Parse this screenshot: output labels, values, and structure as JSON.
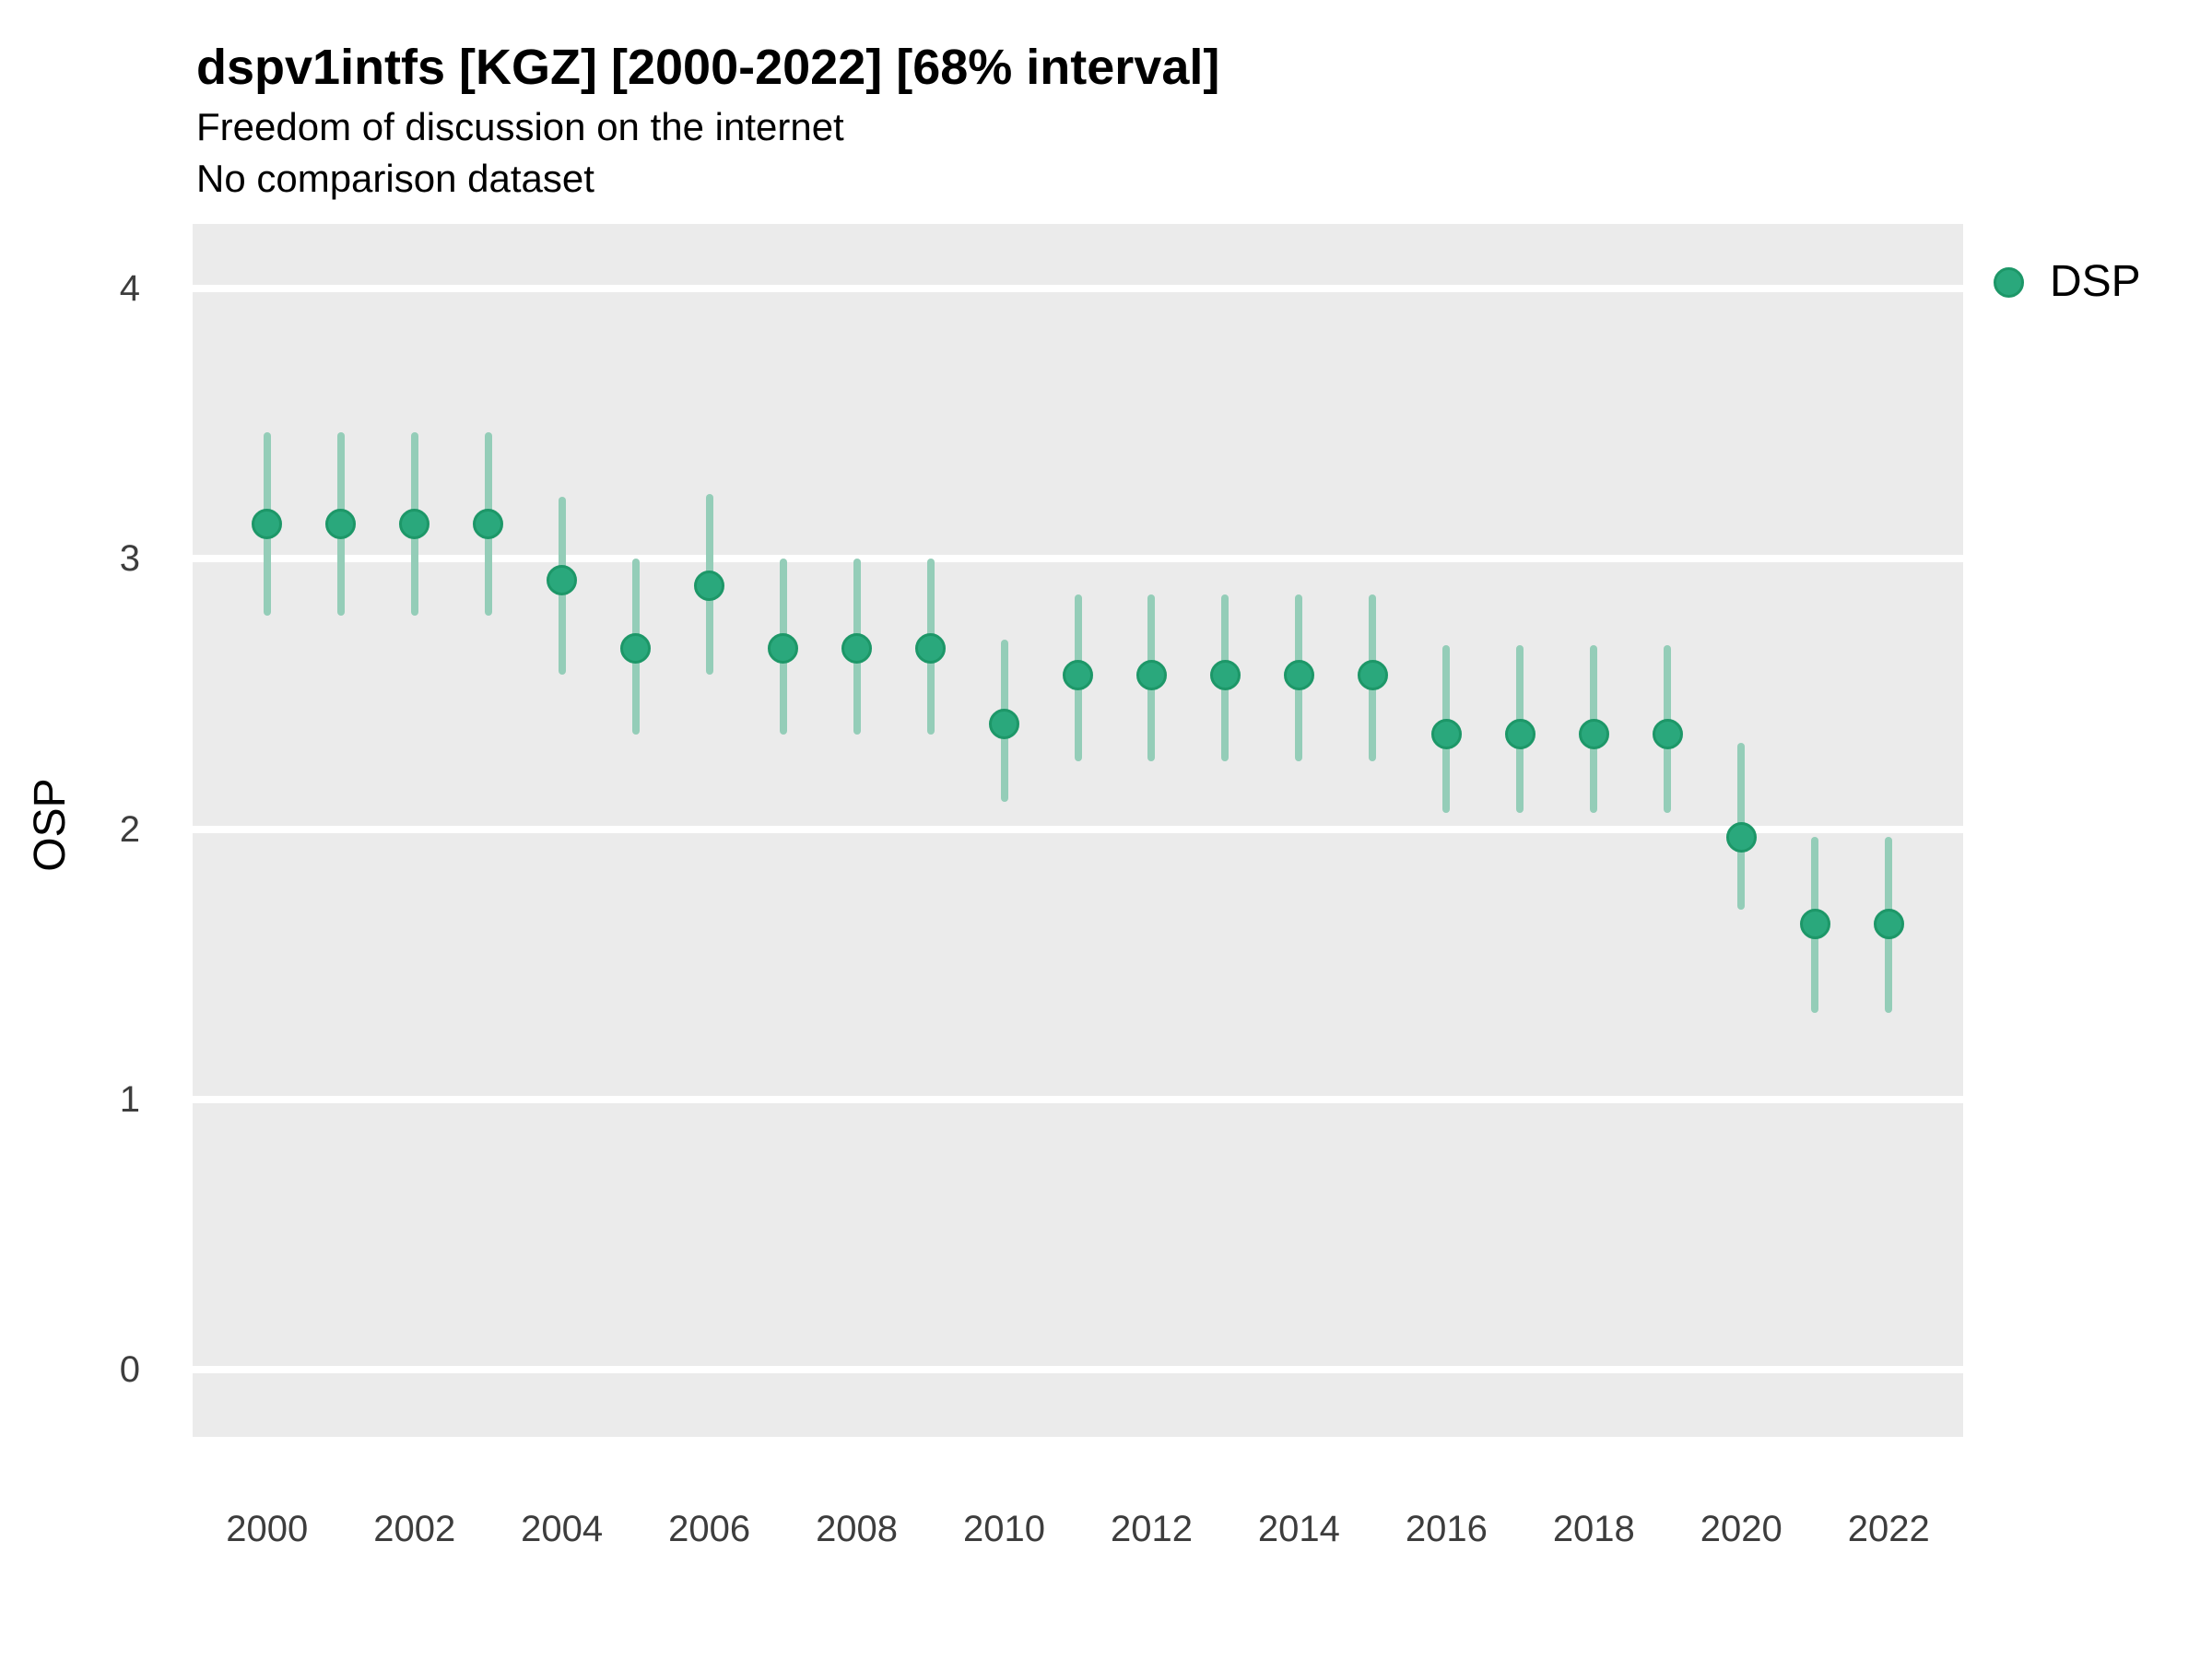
{
  "chart_data": {
    "type": "scatter",
    "title": "dspv1intfs [KGZ] [2000-2022] [68% interval]",
    "subtitle": "Freedom of discussion on the internet",
    "subtitle2": "No comparison dataset",
    "ylabel": "OSP",
    "xlabel": "",
    "interval": "68%",
    "legend": {
      "label": "DSP",
      "position": "right"
    },
    "x_ticks": [
      2000,
      2002,
      2004,
      2006,
      2008,
      2010,
      2012,
      2014,
      2016,
      2018,
      2020,
      2022
    ],
    "y_ticks": [
      0,
      1,
      2,
      3,
      4
    ],
    "x_domain": [
      1998.99,
      2023.01
    ],
    "y_domain": [
      -0.25,
      4.24
    ],
    "grid": "major horizontal white lines on gray panel",
    "series": [
      {
        "name": "DSP",
        "color": "#2aa87c",
        "stroke_color": "#1d9768",
        "interval_color": "#94cdb8",
        "points": [
          {
            "year": 2000,
            "value": 3.13,
            "lo": 2.79,
            "hi": 3.47
          },
          {
            "year": 2001,
            "value": 3.13,
            "lo": 2.79,
            "hi": 3.47
          },
          {
            "year": 2002,
            "value": 3.13,
            "lo": 2.79,
            "hi": 3.47
          },
          {
            "year": 2003,
            "value": 3.13,
            "lo": 2.79,
            "hi": 3.47
          },
          {
            "year": 2004,
            "value": 2.92,
            "lo": 2.57,
            "hi": 3.23
          },
          {
            "year": 2005,
            "value": 2.67,
            "lo": 2.35,
            "hi": 3.0
          },
          {
            "year": 2006,
            "value": 2.9,
            "lo": 2.57,
            "hi": 3.24
          },
          {
            "year": 2007,
            "value": 2.67,
            "lo": 2.35,
            "hi": 3.0
          },
          {
            "year": 2008,
            "value": 2.67,
            "lo": 2.35,
            "hi": 3.0
          },
          {
            "year": 2009,
            "value": 2.67,
            "lo": 2.35,
            "hi": 3.0
          },
          {
            "year": 2010,
            "value": 2.39,
            "lo": 2.1,
            "hi": 2.7
          },
          {
            "year": 2011,
            "value": 2.57,
            "lo": 2.25,
            "hi": 2.87
          },
          {
            "year": 2012,
            "value": 2.57,
            "lo": 2.25,
            "hi": 2.87
          },
          {
            "year": 2013,
            "value": 2.57,
            "lo": 2.25,
            "hi": 2.87
          },
          {
            "year": 2014,
            "value": 2.57,
            "lo": 2.25,
            "hi": 2.87
          },
          {
            "year": 2015,
            "value": 2.57,
            "lo": 2.25,
            "hi": 2.87
          },
          {
            "year": 2016,
            "value": 2.35,
            "lo": 2.06,
            "hi": 2.68
          },
          {
            "year": 2017,
            "value": 2.35,
            "lo": 2.06,
            "hi": 2.68
          },
          {
            "year": 2018,
            "value": 2.35,
            "lo": 2.06,
            "hi": 2.68
          },
          {
            "year": 2019,
            "value": 2.35,
            "lo": 2.06,
            "hi": 2.68
          },
          {
            "year": 2020,
            "value": 1.97,
            "lo": 1.7,
            "hi": 2.32
          },
          {
            "year": 2021,
            "value": 1.65,
            "lo": 1.32,
            "hi": 1.97
          },
          {
            "year": 2022,
            "value": 1.65,
            "lo": 1.32,
            "hi": 1.97
          }
        ]
      }
    ]
  },
  "colors": {
    "panel_bg": "#ebebeb",
    "grid": "#ffffff",
    "dot_fill": "#2aa87c",
    "dot_stroke": "#1d9768",
    "whisker": "#94cdb8",
    "axis_text": "#3d3d3d",
    "title_text": "#000000"
  }
}
